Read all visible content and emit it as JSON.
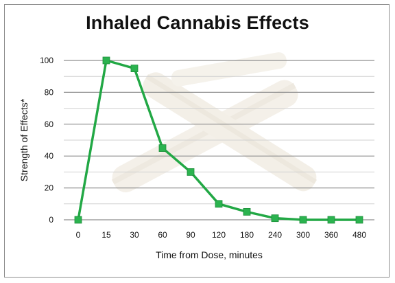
{
  "chart_data": {
    "type": "line",
    "title": "Inhaled Cannabis Effects",
    "xlabel": "Time from Dose, minutes",
    "ylabel": "Strength of Effects*",
    "categories": [
      "0",
      "15",
      "30",
      "60",
      "90",
      "120",
      "180",
      "240",
      "300",
      "360",
      "480"
    ],
    "series": [
      {
        "values": [
          0,
          100,
          95,
          45,
          30,
          10,
          5,
          1,
          0,
          0,
          0
        ]
      }
    ],
    "ylim": [
      0,
      100
    ],
    "yticks": [
      0,
      20,
      40,
      60,
      80,
      100
    ],
    "grid": true,
    "legend": "none",
    "line_color": "#22a845",
    "marker_color": "#2bb34f"
  }
}
